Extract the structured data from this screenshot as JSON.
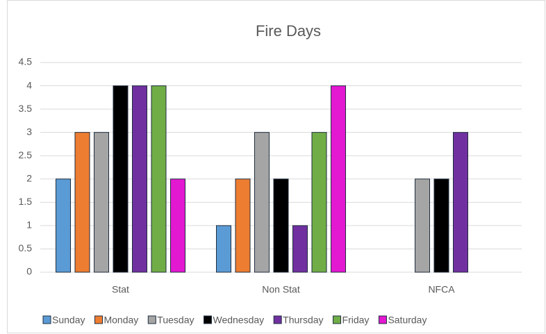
{
  "chart_data": {
    "type": "bar",
    "title": "Fire Days",
    "categories": [
      "Stat",
      "Non Stat",
      "NFCA"
    ],
    "series": [
      {
        "name": "Sunday",
        "color": "#5b9bd5",
        "values": [
          2,
          1,
          0
        ]
      },
      {
        "name": "Monday",
        "color": "#ed7d31",
        "values": [
          3,
          2,
          0
        ]
      },
      {
        "name": "Tuesday",
        "color": "#a5a5a5",
        "values": [
          3,
          3,
          2
        ]
      },
      {
        "name": "Wednesday",
        "color": "#000000",
        "values": [
          4,
          2,
          2
        ]
      },
      {
        "name": "Thursday",
        "color": "#7030a0",
        "values": [
          4,
          1,
          3
        ]
      },
      {
        "name": "Friday",
        "color": "#70ad47",
        "values": [
          4,
          3,
          0
        ]
      },
      {
        "name": "Saturday",
        "color": "#e318d1",
        "values": [
          2,
          4,
          0
        ]
      }
    ],
    "ylim": [
      0,
      4.5
    ],
    "yticks": [
      0,
      0.5,
      1,
      1.5,
      2,
      2.5,
      3,
      3.5,
      4,
      4.5
    ],
    "grid": true,
    "legend": "bottom"
  }
}
